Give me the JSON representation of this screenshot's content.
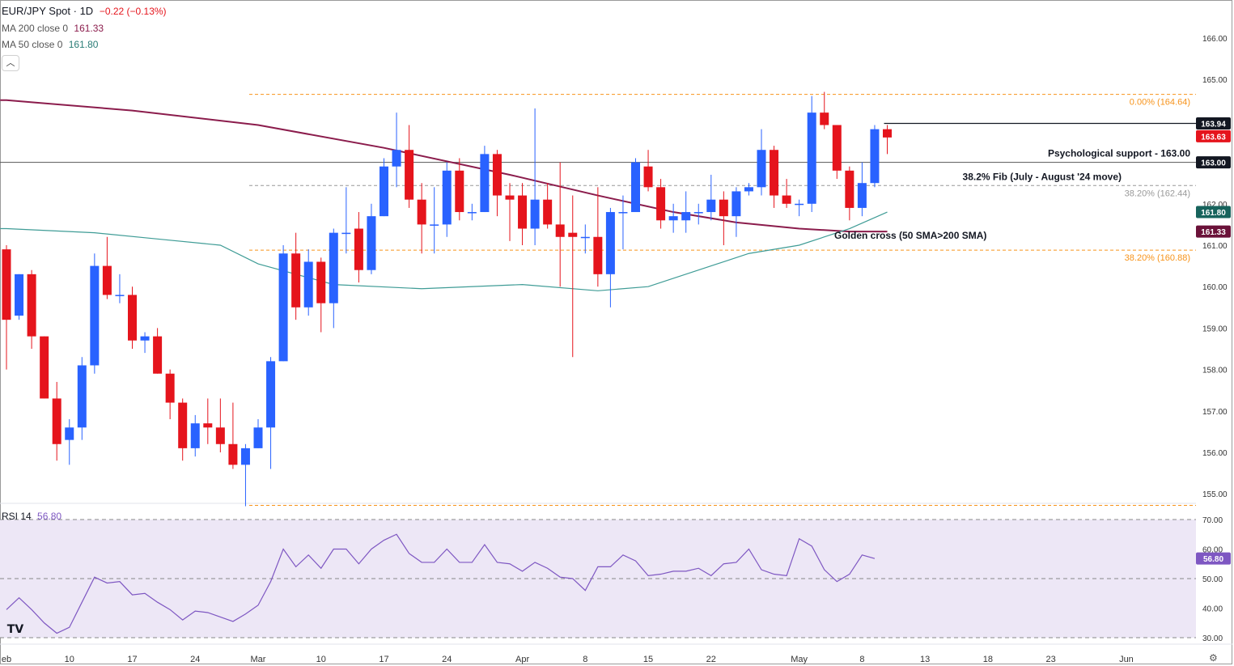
{
  "header": {
    "symbol": "EUR/JPY Spot · 1D",
    "change": "−0.22 (−0.13%)",
    "ma200_label": "MA 200 close 0",
    "ma200_value": "161.33",
    "ma50_label": "MA 50 close 0",
    "ma50_value": "161.80",
    "collapse_glyph": "︿"
  },
  "colors": {
    "up": "#2962ff",
    "down": "#e5141c",
    "ma200": "#8b1c4c",
    "ma50": "#3f9c96",
    "fib": "#f7931a",
    "rsi": "#7e57c2",
    "rsi_band": "#ede7f6"
  },
  "rsi": {
    "label": "RSI 14",
    "value": "56.80"
  },
  "logo_text": "TV",
  "settings_glyph": "⚙",
  "chart_data": [
    {
      "type": "candlestick",
      "title": "EUR/JPY Spot · 1D",
      "ylim": [
        154.6,
        166.6
      ],
      "y_ticks": [
        "155.00",
        "156.00",
        "157.00",
        "158.00",
        "159.00",
        "160.00",
        "161.00",
        "162.00",
        "163.00",
        "164.00",
        "165.00",
        "166.00"
      ],
      "x_ticks": [
        {
          "label": "eb",
          "i": 0
        },
        {
          "label": "10",
          "i": 5
        },
        {
          "label": "17",
          "i": 10
        },
        {
          "label": "24",
          "i": 15
        },
        {
          "label": "Mar",
          "i": 20
        },
        {
          "label": "10",
          "i": 25
        },
        {
          "label": "17",
          "i": 30
        },
        {
          "label": "24",
          "i": 35
        },
        {
          "label": "Apr",
          "i": 41
        },
        {
          "label": "8",
          "i": 46
        },
        {
          "label": "15",
          "i": 51
        },
        {
          "label": "22",
          "i": 56
        },
        {
          "label": "May",
          "i": 63
        },
        {
          "label": "8",
          "i": 68
        },
        {
          "label": "13",
          "i": 73
        },
        {
          "label": "18",
          "i": 78
        },
        {
          "label": "23",
          "i": 83
        },
        {
          "label": "Jun",
          "i": 89
        }
      ],
      "candles": [
        {
          "o": 160.9,
          "h": 161.0,
          "l": 158.0,
          "c": 159.2
        },
        {
          "o": 159.3,
          "h": 160.3,
          "l": 159.2,
          "c": 160.3
        },
        {
          "o": 160.3,
          "h": 160.4,
          "l": 158.5,
          "c": 158.8
        },
        {
          "o": 158.8,
          "h": 158.8,
          "l": 157.3,
          "c": 157.3
        },
        {
          "o": 157.3,
          "h": 157.7,
          "l": 155.8,
          "c": 156.2
        },
        {
          "o": 156.3,
          "h": 156.8,
          "l": 155.7,
          "c": 156.6
        },
        {
          "o": 156.6,
          "h": 158.3,
          "l": 156.3,
          "c": 158.1
        },
        {
          "o": 158.1,
          "h": 160.8,
          "l": 157.9,
          "c": 160.5
        },
        {
          "o": 160.5,
          "h": 161.2,
          "l": 159.7,
          "c": 159.8
        },
        {
          "o": 159.8,
          "h": 160.3,
          "l": 159.6,
          "c": 159.8
        },
        {
          "o": 159.8,
          "h": 160.0,
          "l": 158.5,
          "c": 158.7
        },
        {
          "o": 158.7,
          "h": 158.9,
          "l": 158.4,
          "c": 158.8
        },
        {
          "o": 158.8,
          "h": 159.0,
          "l": 157.9,
          "c": 157.9
        },
        {
          "o": 157.9,
          "h": 158.0,
          "l": 156.8,
          "c": 157.2
        },
        {
          "o": 157.2,
          "h": 157.3,
          "l": 155.8,
          "c": 156.1
        },
        {
          "o": 156.1,
          "h": 156.9,
          "l": 155.9,
          "c": 156.7
        },
        {
          "o": 156.7,
          "h": 157.3,
          "l": 156.2,
          "c": 156.6
        },
        {
          "o": 156.6,
          "h": 157.3,
          "l": 156.0,
          "c": 156.2
        },
        {
          "o": 156.2,
          "h": 157.2,
          "l": 155.6,
          "c": 155.7
        },
        {
          "o": 155.7,
          "h": 156.2,
          "l": 154.7,
          "c": 156.1
        },
        {
          "o": 156.1,
          "h": 156.8,
          "l": 156.1,
          "c": 156.6
        },
        {
          "o": 156.6,
          "h": 158.3,
          "l": 155.6,
          "c": 158.2
        },
        {
          "o": 158.2,
          "h": 161.0,
          "l": 158.2,
          "c": 160.8
        },
        {
          "o": 160.8,
          "h": 161.3,
          "l": 159.2,
          "c": 159.5
        },
        {
          "o": 159.5,
          "h": 160.9,
          "l": 159.3,
          "c": 160.6
        },
        {
          "o": 160.6,
          "h": 160.7,
          "l": 158.9,
          "c": 159.6
        },
        {
          "o": 159.6,
          "h": 161.4,
          "l": 159.0,
          "c": 161.3
        },
        {
          "o": 161.3,
          "h": 162.4,
          "l": 160.8,
          "c": 161.3
        },
        {
          "o": 161.4,
          "h": 161.8,
          "l": 160.1,
          "c": 160.4
        },
        {
          "o": 160.4,
          "h": 162.0,
          "l": 160.3,
          "c": 161.7
        },
        {
          "o": 161.7,
          "h": 163.1,
          "l": 161.7,
          "c": 162.9
        },
        {
          "o": 162.9,
          "h": 164.2,
          "l": 162.4,
          "c": 163.3
        },
        {
          "o": 163.3,
          "h": 163.9,
          "l": 161.9,
          "c": 162.1
        },
        {
          "o": 162.1,
          "h": 162.5,
          "l": 160.8,
          "c": 161.5
        },
        {
          "o": 161.5,
          "h": 162.4,
          "l": 160.8,
          "c": 161.5
        },
        {
          "o": 161.5,
          "h": 163.0,
          "l": 161.2,
          "c": 162.8
        },
        {
          "o": 162.8,
          "h": 163.1,
          "l": 161.6,
          "c": 161.8
        },
        {
          "o": 161.8,
          "h": 162.0,
          "l": 161.6,
          "c": 161.8
        },
        {
          "o": 161.8,
          "h": 163.4,
          "l": 161.8,
          "c": 163.2
        },
        {
          "o": 163.2,
          "h": 163.3,
          "l": 161.7,
          "c": 162.2
        },
        {
          "o": 162.2,
          "h": 162.5,
          "l": 161.1,
          "c": 162.1
        },
        {
          "o": 162.2,
          "h": 162.5,
          "l": 161.0,
          "c": 161.4
        },
        {
          "o": 161.4,
          "h": 164.3,
          "l": 161.0,
          "c": 162.1
        },
        {
          "o": 162.1,
          "h": 162.5,
          "l": 161.4,
          "c": 161.5
        },
        {
          "o": 161.5,
          "h": 163.0,
          "l": 160.0,
          "c": 161.2
        },
        {
          "o": 161.3,
          "h": 162.2,
          "l": 158.3,
          "c": 161.2
        },
        {
          "o": 161.2,
          "h": 161.5,
          "l": 160.8,
          "c": 161.2
        },
        {
          "o": 161.2,
          "h": 162.4,
          "l": 160.0,
          "c": 160.3
        },
        {
          "o": 160.3,
          "h": 161.9,
          "l": 159.5,
          "c": 161.8
        },
        {
          "o": 161.8,
          "h": 162.2,
          "l": 160.9,
          "c": 161.8
        },
        {
          "o": 161.8,
          "h": 163.1,
          "l": 161.8,
          "c": 163.0
        },
        {
          "o": 162.9,
          "h": 163.3,
          "l": 162.3,
          "c": 162.4
        },
        {
          "o": 162.4,
          "h": 162.6,
          "l": 161.4,
          "c": 161.6
        },
        {
          "o": 161.6,
          "h": 162.0,
          "l": 161.3,
          "c": 161.7
        },
        {
          "o": 161.6,
          "h": 162.3,
          "l": 161.3,
          "c": 161.8
        },
        {
          "o": 161.8,
          "h": 162.0,
          "l": 161.5,
          "c": 161.8
        },
        {
          "o": 161.8,
          "h": 162.7,
          "l": 161.6,
          "c": 162.1
        },
        {
          "o": 162.1,
          "h": 162.3,
          "l": 161.0,
          "c": 161.7
        },
        {
          "o": 161.7,
          "h": 162.4,
          "l": 161.2,
          "c": 162.3
        },
        {
          "o": 162.3,
          "h": 162.5,
          "l": 162.2,
          "c": 162.4
        },
        {
          "o": 162.4,
          "h": 163.8,
          "l": 162.2,
          "c": 163.3
        },
        {
          "o": 163.3,
          "h": 163.4,
          "l": 161.9,
          "c": 162.2
        },
        {
          "o": 162.2,
          "h": 162.6,
          "l": 161.9,
          "c": 162.0
        },
        {
          "o": 162.0,
          "h": 162.1,
          "l": 161.7,
          "c": 162.0
        },
        {
          "o": 162.0,
          "h": 164.6,
          "l": 161.8,
          "c": 164.2
        },
        {
          "o": 164.2,
          "h": 164.7,
          "l": 163.8,
          "c": 163.9
        },
        {
          "o": 163.9,
          "h": 163.9,
          "l": 162.6,
          "c": 162.8
        },
        {
          "o": 162.8,
          "h": 162.9,
          "l": 161.6,
          "c": 161.9
        },
        {
          "o": 161.9,
          "h": 163.0,
          "l": 161.7,
          "c": 162.5
        },
        {
          "o": 162.5,
          "h": 163.9,
          "l": 162.4,
          "c": 163.8
        },
        {
          "o": 163.8,
          "h": 163.9,
          "l": 163.2,
          "c": 163.6
        }
      ],
      "ma200": [
        [
          0,
          164.5
        ],
        [
          10,
          164.25
        ],
        [
          20,
          163.9
        ],
        [
          30,
          163.35
        ],
        [
          40,
          162.7
        ],
        [
          47,
          162.2
        ],
        [
          53,
          161.8
        ],
        [
          58,
          161.55
        ],
        [
          63,
          161.4
        ],
        [
          67,
          161.33
        ],
        [
          70,
          161.33
        ]
      ],
      "ma50": [
        [
          0,
          161.4
        ],
        [
          7,
          161.3
        ],
        [
          12,
          161.15
        ],
        [
          17,
          161.0
        ],
        [
          20,
          160.55
        ],
        [
          26,
          160.05
        ],
        [
          33,
          159.95
        ],
        [
          41,
          160.05
        ],
        [
          47,
          159.9
        ],
        [
          51,
          160.0
        ],
        [
          56,
          160.5
        ],
        [
          59,
          160.8
        ],
        [
          63,
          161.0
        ],
        [
          67,
          161.4
        ],
        [
          70,
          161.8
        ]
      ],
      "levels": [
        {
          "name": "fib-0",
          "value": 164.64,
          "label": "0.00% (164.64)",
          "style": "fib"
        },
        {
          "name": "fib-38-upper",
          "value": 162.44,
          "label": "38.20% (162.44)",
          "style": "fib-grey"
        },
        {
          "name": "fib-38-lower",
          "value": 160.88,
          "label": "38.20% (160.88)",
          "style": "fib"
        },
        {
          "name": "fib-100",
          "value": 154.72,
          "label": "",
          "style": "fib"
        },
        {
          "name": "psych-support",
          "value": 163.0,
          "label": "",
          "style": "grey"
        }
      ],
      "annotations": {
        "psych_support": "Psychological support - 163.00",
        "fib_zone": "38.2% Fib (July - August '24 move)",
        "golden_cross": "Golden cross (50 SMA>200 SMA)"
      },
      "price_labels": [
        {
          "name": "last-high",
          "value": 163.94,
          "text": "163.94",
          "bg": "#131722"
        },
        {
          "name": "last-price",
          "value": 163.63,
          "text": "163.63",
          "bg": "#e5141c"
        },
        {
          "name": "support",
          "value": 163.0,
          "text": "163.00",
          "bg": "#131722"
        },
        {
          "name": "ma50",
          "value": 161.8,
          "text": "161.80",
          "bg": "#17635c"
        },
        {
          "name": "ma200",
          "value": 161.33,
          "text": "161.33",
          "bg": "#6b1239"
        }
      ],
      "last_high_line": 163.94
    },
    {
      "type": "line",
      "title": "RSI 14",
      "ylim": [
        28,
        72
      ],
      "y_ticks": [
        "30.00",
        "40.00",
        "50.00",
        "60.00",
        "70.00"
      ],
      "band": [
        30,
        70
      ],
      "midline": 50,
      "current": "56.80",
      "values": [
        [
          0,
          39.5
        ],
        [
          1,
          43.5
        ],
        [
          2,
          39.5
        ],
        [
          3,
          35.0
        ],
        [
          4,
          31.5
        ],
        [
          5,
          33.5
        ],
        [
          6,
          42.0
        ],
        [
          7,
          50.5
        ],
        [
          8,
          48.5
        ],
        [
          9,
          49.0
        ],
        [
          10,
          44.5
        ],
        [
          11,
          45.0
        ],
        [
          12,
          42.0
        ],
        [
          13,
          39.5
        ],
        [
          14,
          36.0
        ],
        [
          15,
          39.0
        ],
        [
          16,
          38.5
        ],
        [
          17,
          37.0
        ],
        [
          18,
          35.5
        ],
        [
          19,
          38.0
        ],
        [
          20,
          41.0
        ],
        [
          21,
          49.0
        ],
        [
          22,
          60.0
        ],
        [
          23,
          54.0
        ],
        [
          24,
          58.0
        ],
        [
          25,
          53.5
        ],
        [
          26,
          60.0
        ],
        [
          27,
          60.0
        ],
        [
          28,
          55.0
        ],
        [
          29,
          60.0
        ],
        [
          30,
          63.0
        ],
        [
          31,
          65.0
        ],
        [
          32,
          58.5
        ],
        [
          33,
          55.5
        ],
        [
          34,
          55.5
        ],
        [
          35,
          60.0
        ],
        [
          36,
          55.5
        ],
        [
          37,
          55.5
        ],
        [
          38,
          61.5
        ],
        [
          39,
          55.5
        ],
        [
          40,
          55.0
        ],
        [
          41,
          52.5
        ],
        [
          42,
          55.5
        ],
        [
          43,
          53.5
        ],
        [
          44,
          50.5
        ],
        [
          45,
          50.0
        ],
        [
          46,
          46.0
        ],
        [
          47,
          54.0
        ],
        [
          48,
          54.0
        ],
        [
          49,
          58.0
        ],
        [
          50,
          56.0
        ],
        [
          51,
          51.0
        ],
        [
          52,
          51.5
        ],
        [
          53,
          52.5
        ],
        [
          54,
          52.5
        ],
        [
          55,
          53.5
        ],
        [
          56,
          51.0
        ],
        [
          57,
          55.0
        ],
        [
          58,
          55.5
        ],
        [
          59,
          60.0
        ],
        [
          60,
          53.0
        ],
        [
          61,
          51.5
        ],
        [
          62,
          51.0
        ],
        [
          63,
          63.5
        ],
        [
          64,
          61.0
        ],
        [
          65,
          53.0
        ],
        [
          66,
          49.0
        ],
        [
          67,
          51.5
        ],
        [
          68,
          58.0
        ],
        [
          69,
          56.8
        ]
      ]
    }
  ]
}
